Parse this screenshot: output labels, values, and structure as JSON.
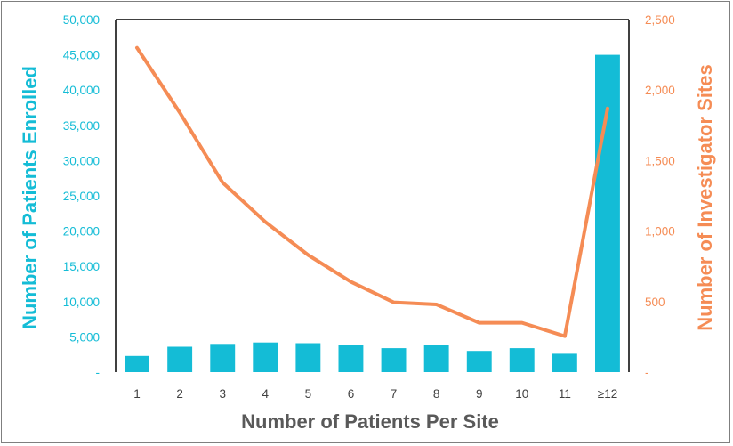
{
  "colors": {
    "bars": "#14bcd6",
    "line": "#f58c55",
    "axis_text": "#595959",
    "frame": "#7f7f7f"
  },
  "chart_data": {
    "type": "bar+line",
    "categories": [
      "1",
      "2",
      "3",
      "4",
      "5",
      "6",
      "7",
      "8",
      "9",
      "10",
      "11",
      "≥12"
    ],
    "series": [
      {
        "name": "Number of Patients Enrolled",
        "type": "bar",
        "axis": "left",
        "values": [
          2300,
          3600,
          4000,
          4200,
          4100,
          3800,
          3400,
          3800,
          3000,
          3400,
          2600,
          45000
        ]
      },
      {
        "name": "Number of Investigator Sites",
        "type": "line",
        "axis": "right",
        "values": [
          2300,
          1840,
          1345,
          1065,
          830,
          640,
          495,
          480,
          350,
          350,
          255,
          1870
        ]
      }
    ],
    "xlabel": "Number of Patients Per Site",
    "ylabel_left": "Number of Patients Enrolled",
    "ylabel_right": "Number of Investigator Sites",
    "ylim_left": [
      0,
      50000
    ],
    "ylim_right": [
      0,
      2500
    ],
    "left_ticks": [
      "-",
      "5,000",
      "10,000",
      "15,000",
      "20,000",
      "25,000",
      "30,000",
      "35,000",
      "40,000",
      "45,000",
      "50,000"
    ],
    "right_ticks": [
      "-",
      "500",
      "1,000",
      "1,500",
      "2,000",
      "2,500"
    ],
    "grid": false
  }
}
